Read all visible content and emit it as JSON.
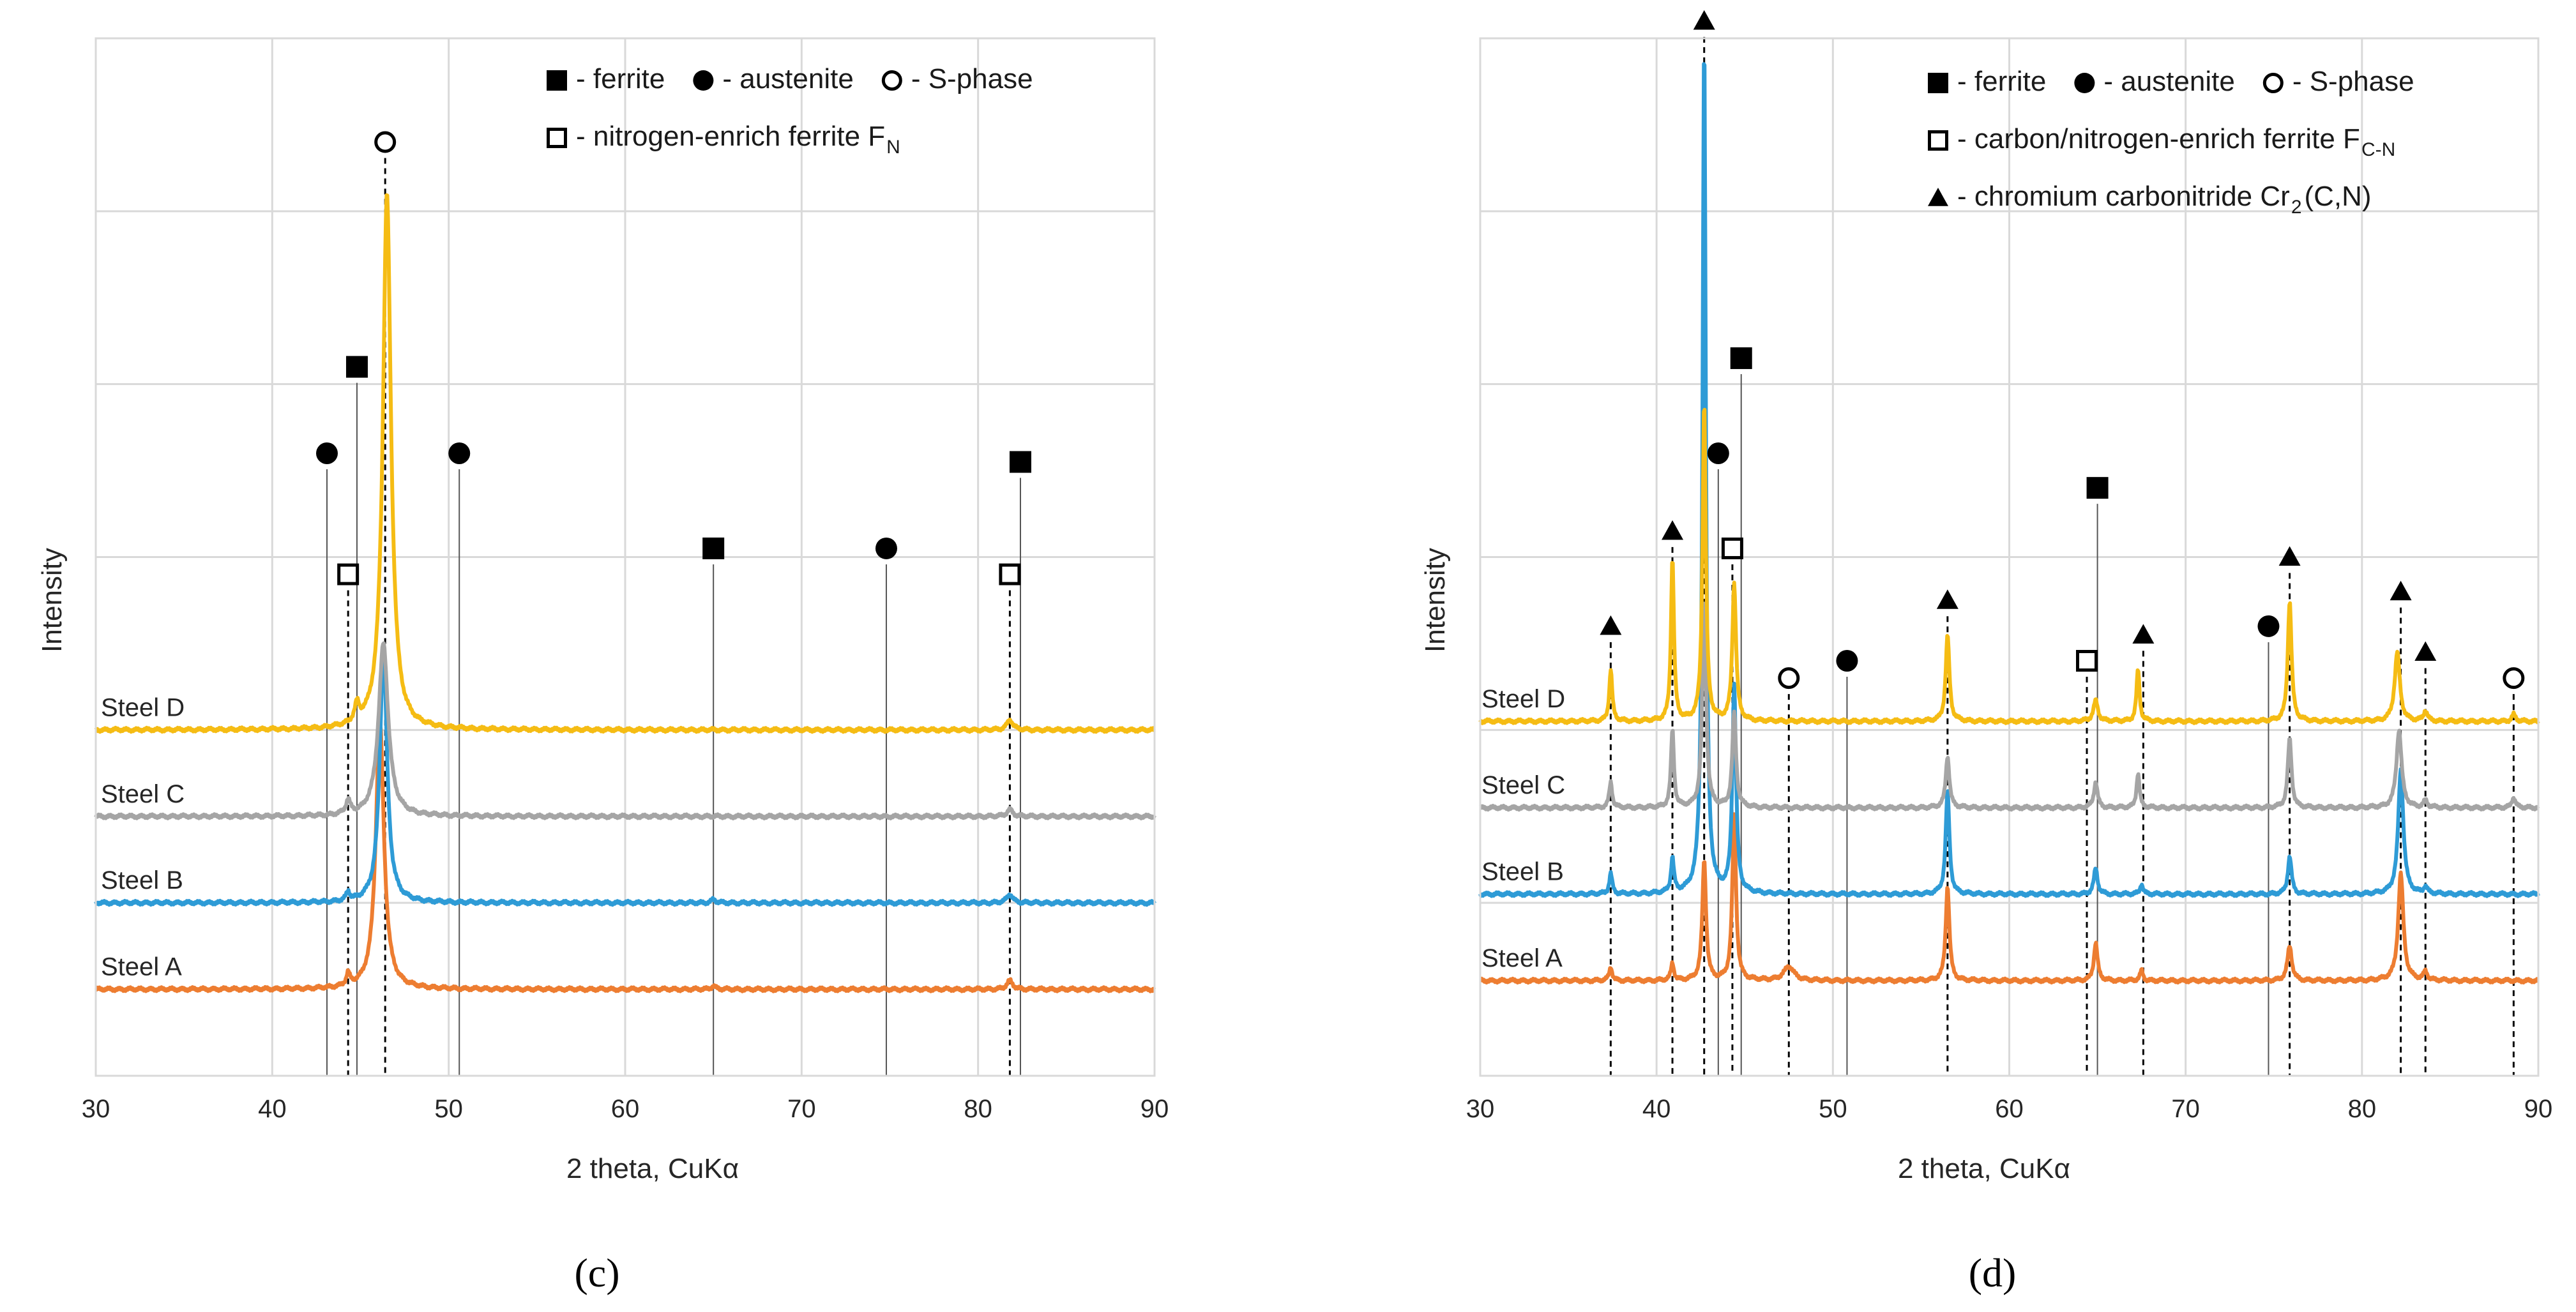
{
  "colors": {
    "steel_a": "#ed7d31",
    "steel_b": "#2e9bd6",
    "steel_c": "#a5a5a5",
    "steel_d": "#f5bc14",
    "grid": "#d9d9d9",
    "marker": "#000000"
  },
  "panels": [
    {
      "id": "c",
      "label": "(c)",
      "xlabel": "2 theta, CuKα",
      "ylabel": "Intensity",
      "xlim": [
        30,
        90
      ],
      "xticks": [
        30,
        40,
        50,
        60,
        70,
        80,
        90
      ],
      "legend": [
        {
          "items": [
            {
              "symbol": "square-filled",
              "text": "- ferrite"
            },
            {
              "symbol": "circle-filled",
              "text": "- austenite"
            },
            {
              "symbol": "circle-open",
              "text": "- S-phase"
            }
          ]
        },
        {
          "items": [
            {
              "symbol": "square-open",
              "text": "- nitrogen-enrich ferrite F",
              "sub": "N"
            }
          ]
        }
      ],
      "steel_labels": [
        "Steel D",
        "Steel C",
        "Steel B",
        "Steel A"
      ]
    },
    {
      "id": "d",
      "label": "(d)",
      "xlabel": "2 theta, CuKα",
      "ylabel": "Intensity",
      "xlim": [
        30,
        90
      ],
      "xticks": [
        30,
        40,
        50,
        60,
        70,
        80,
        90
      ],
      "legend": [
        {
          "items": [
            {
              "symbol": "square-filled",
              "text": "- ferrite"
            },
            {
              "symbol": "circle-filled",
              "text": "- austenite"
            },
            {
              "symbol": "circle-open",
              "text": "- S-phase"
            }
          ]
        },
        {
          "items": [
            {
              "symbol": "square-open",
              "text": "- carbon/nitrogen-enrich ferrite F",
              "sub": "C-N"
            }
          ]
        },
        {
          "items": [
            {
              "symbol": "triangle-filled",
              "text": "- chromium carbonitride Cr",
              "sub": "2",
              "suffix": "(C,N)"
            }
          ]
        }
      ],
      "steel_labels": [
        "Steel D",
        "Steel C",
        "Steel B",
        "Steel A"
      ]
    }
  ],
  "chart_data": [
    {
      "type": "line",
      "title": "(c)",
      "xlabel": "2 theta, CuKα",
      "ylabel": "Intensity",
      "xlim": [
        30,
        90
      ],
      "ylim": [
        0,
        6
      ],
      "grid": true,
      "series": [
        {
          "name": "Steel A",
          "color": "#ed7d31",
          "baseline": 0.5,
          "peaks": [
            {
              "x": 44.3,
              "h": 0.07,
              "w": 0.25
            },
            {
              "x": 46.1,
              "h": 1.55,
              "w": 0.55
            },
            {
              "x": 65.0,
              "h": 0.02,
              "w": 0.3
            },
            {
              "x": 81.8,
              "h": 0.05,
              "w": 0.4
            }
          ]
        },
        {
          "name": "Steel B",
          "color": "#2e9bd6",
          "baseline": 1.0,
          "peaks": [
            {
              "x": 44.3,
              "h": 0.05,
              "w": 0.25
            },
            {
              "x": 46.3,
              "h": 1.45,
              "w": 0.5
            },
            {
              "x": 65.0,
              "h": 0.02,
              "w": 0.3
            },
            {
              "x": 81.8,
              "h": 0.05,
              "w": 0.4
            }
          ]
        },
        {
          "name": "Steel C",
          "color": "#a5a5a5",
          "baseline": 1.5,
          "peaks": [
            {
              "x": 44.3,
              "h": 0.08,
              "w": 0.3
            },
            {
              "x": 46.3,
              "h": 1.0,
              "w": 0.65
            },
            {
              "x": 81.8,
              "h": 0.04,
              "w": 0.4
            }
          ]
        },
        {
          "name": "Steel D",
          "color": "#f5bc14",
          "baseline": 2.0,
          "peaks": [
            {
              "x": 44.8,
              "h": 0.1,
              "w": 0.3
            },
            {
              "x": 46.5,
              "h": 3.1,
              "w": 0.55
            },
            {
              "x": 81.8,
              "h": 0.06,
              "w": 0.4
            }
          ]
        }
      ],
      "markers": [
        {
          "phase": "austenite",
          "symbol": "circle-filled",
          "x": 43.1,
          "y": 3.6,
          "line": "solid"
        },
        {
          "phase": "nitrogen-enrich ferrite",
          "symbol": "square-open",
          "x": 44.3,
          "y": 2.9,
          "line": "dashed"
        },
        {
          "phase": "ferrite",
          "symbol": "square-filled",
          "x": 44.8,
          "y": 4.1,
          "line": "solid"
        },
        {
          "phase": "S-phase",
          "symbol": "circle-open",
          "x": 46.4,
          "y": 5.4,
          "line": "dashed"
        },
        {
          "phase": "austenite",
          "symbol": "circle-filled",
          "x": 50.6,
          "y": 3.6,
          "line": "solid"
        },
        {
          "phase": "ferrite",
          "symbol": "square-filled",
          "x": 65.0,
          "y": 3.05,
          "line": "solid"
        },
        {
          "phase": "austenite",
          "symbol": "circle-filled",
          "x": 74.8,
          "y": 3.05,
          "line": "solid"
        },
        {
          "phase": "nitrogen-enrich ferrite",
          "symbol": "square-open",
          "x": 81.8,
          "y": 2.9,
          "line": "dashed"
        },
        {
          "phase": "ferrite",
          "symbol": "square-filled",
          "x": 82.4,
          "y": 3.55,
          "line": "solid"
        }
      ]
    },
    {
      "type": "line",
      "title": "(d)",
      "xlabel": "2 theta, CuKα",
      "ylabel": "Intensity",
      "xlim": [
        30,
        90
      ],
      "ylim": [
        0,
        6
      ],
      "grid": true,
      "series": [
        {
          "name": "Steel A",
          "color": "#ed7d31",
          "baseline": 0.55,
          "peaks": [
            {
              "x": 37.4,
              "h": 0.08,
              "w": 0.2
            },
            {
              "x": 40.9,
              "h": 0.1,
              "w": 0.2
            },
            {
              "x": 42.7,
              "h": 0.7,
              "w": 0.25
            },
            {
              "x": 44.4,
              "h": 0.95,
              "w": 0.25
            },
            {
              "x": 47.5,
              "h": 0.08,
              "w": 0.7
            },
            {
              "x": 56.5,
              "h": 0.55,
              "w": 0.25
            },
            {
              "x": 64.9,
              "h": 0.22,
              "w": 0.25
            },
            {
              "x": 67.5,
              "h": 0.06,
              "w": 0.2
            },
            {
              "x": 75.9,
              "h": 0.2,
              "w": 0.3
            },
            {
              "x": 82.2,
              "h": 0.62,
              "w": 0.35
            },
            {
              "x": 83.6,
              "h": 0.05,
              "w": 0.25
            }
          ]
        },
        {
          "name": "Steel B",
          "color": "#2e9bd6",
          "baseline": 1.05,
          "peaks": [
            {
              "x": 37.4,
              "h": 0.12,
              "w": 0.2
            },
            {
              "x": 40.9,
              "h": 0.2,
              "w": 0.2
            },
            {
              "x": 42.7,
              "h": 4.95,
              "w": 0.22
            },
            {
              "x": 44.4,
              "h": 1.2,
              "w": 0.25
            },
            {
              "x": 56.5,
              "h": 0.6,
              "w": 0.25
            },
            {
              "x": 64.9,
              "h": 0.15,
              "w": 0.25
            },
            {
              "x": 67.5,
              "h": 0.06,
              "w": 0.2
            },
            {
              "x": 75.9,
              "h": 0.22,
              "w": 0.25
            },
            {
              "x": 82.2,
              "h": 0.72,
              "w": 0.35
            },
            {
              "x": 83.6,
              "h": 0.04,
              "w": 0.25
            }
          ]
        },
        {
          "name": "Steel C",
          "color": "#a5a5a5",
          "baseline": 1.55,
          "peaks": [
            {
              "x": 37.4,
              "h": 0.15,
              "w": 0.2
            },
            {
              "x": 40.9,
              "h": 0.45,
              "w": 0.2
            },
            {
              "x": 42.7,
              "h": 1.2,
              "w": 0.25
            },
            {
              "x": 44.4,
              "h": 0.55,
              "w": 0.25
            },
            {
              "x": 56.5,
              "h": 0.3,
              "w": 0.25
            },
            {
              "x": 64.9,
              "h": 0.15,
              "w": 0.25
            },
            {
              "x": 67.3,
              "h": 0.2,
              "w": 0.2
            },
            {
              "x": 75.9,
              "h": 0.4,
              "w": 0.25
            },
            {
              "x": 82.1,
              "h": 0.45,
              "w": 0.35
            },
            {
              "x": 83.6,
              "h": 0.04,
              "w": 0.25
            },
            {
              "x": 88.6,
              "h": 0.06,
              "w": 0.25
            }
          ]
        },
        {
          "name": "Steel D",
          "color": "#f5bc14",
          "baseline": 2.05,
          "peaks": [
            {
              "x": 37.4,
              "h": 0.3,
              "w": 0.2
            },
            {
              "x": 40.9,
              "h": 0.95,
              "w": 0.2
            },
            {
              "x": 42.7,
              "h": 1.85,
              "w": 0.22
            },
            {
              "x": 44.4,
              "h": 0.8,
              "w": 0.25
            },
            {
              "x": 56.5,
              "h": 0.5,
              "w": 0.25
            },
            {
              "x": 64.9,
              "h": 0.12,
              "w": 0.3
            },
            {
              "x": 67.3,
              "h": 0.3,
              "w": 0.2
            },
            {
              "x": 75.9,
              "h": 0.7,
              "w": 0.25
            },
            {
              "x": 82.0,
              "h": 0.4,
              "w": 0.35
            },
            {
              "x": 83.6,
              "h": 0.06,
              "w": 0.25
            },
            {
              "x": 88.6,
              "h": 0.04,
              "w": 0.25
            }
          ]
        }
      ],
      "markers": [
        {
          "phase": "chromium carbonitride",
          "symbol": "triangle-filled",
          "x": 37.4,
          "y": 2.6,
          "line": "dashed"
        },
        {
          "phase": "chromium carbonitride",
          "symbol": "triangle-filled",
          "x": 40.9,
          "y": 3.15,
          "line": "dashed"
        },
        {
          "phase": "chromium carbonitride",
          "symbol": "triangle-filled",
          "x": 42.7,
          "y": 6.1,
          "line": "dashed"
        },
        {
          "phase": "austenite",
          "symbol": "circle-filled",
          "x": 43.5,
          "y": 3.6,
          "line": "solid"
        },
        {
          "phase": "carbon/nitrogen-enrich ferrite",
          "symbol": "square-open",
          "x": 44.3,
          "y": 3.05,
          "line": "dashed"
        },
        {
          "phase": "ferrite",
          "symbol": "square-filled",
          "x": 44.8,
          "y": 4.15,
          "line": "solid"
        },
        {
          "phase": "S-phase",
          "symbol": "circle-open",
          "x": 47.5,
          "y": 2.3,
          "line": "dashed"
        },
        {
          "phase": "austenite",
          "symbol": "circle-filled",
          "x": 50.8,
          "y": 2.4,
          "line": "solid"
        },
        {
          "phase": "chromium carbonitride",
          "symbol": "triangle-filled",
          "x": 56.5,
          "y": 2.75,
          "line": "dashed"
        },
        {
          "phase": "carbon/nitrogen-enrich ferrite",
          "symbol": "square-open",
          "x": 64.4,
          "y": 2.4,
          "line": "dashed"
        },
        {
          "phase": "ferrite",
          "symbol": "square-filled",
          "x": 65.0,
          "y": 3.4,
          "line": "solid"
        },
        {
          "phase": "chromium carbonitride",
          "symbol": "triangle-filled",
          "x": 67.6,
          "y": 2.55,
          "line": "dashed"
        },
        {
          "phase": "austenite",
          "symbol": "circle-filled",
          "x": 74.7,
          "y": 2.6,
          "line": "solid"
        },
        {
          "phase": "chromium carbonitride",
          "symbol": "triangle-filled",
          "x": 75.9,
          "y": 3.0,
          "line": "dashed"
        },
        {
          "phase": "chromium carbonitride",
          "symbol": "triangle-filled",
          "x": 82.2,
          "y": 2.8,
          "line": "dashed"
        },
        {
          "phase": "chromium carbonitride",
          "symbol": "triangle-filled",
          "x": 83.6,
          "y": 2.45,
          "line": "dashed"
        },
        {
          "phase": "S-phase",
          "symbol": "circle-open",
          "x": 88.6,
          "y": 2.3,
          "line": "dashed"
        }
      ]
    }
  ]
}
